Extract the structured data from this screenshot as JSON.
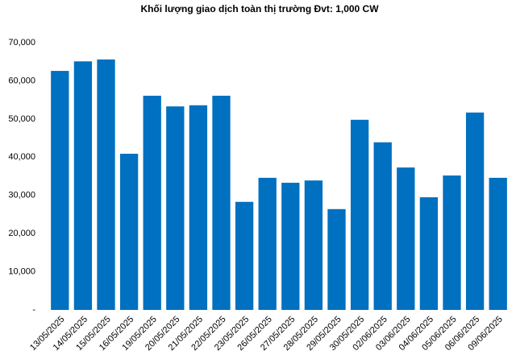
{
  "chart_data": {
    "type": "bar",
    "title": "Khối lượng giao dịch toàn thị trường Đvt: 1,000 CW",
    "categories": [
      "13/05/2025",
      "14/05/2025",
      "15/05/2025",
      "16/05/2025",
      "19/05/2025",
      "20/05/2025",
      "21/05/2025",
      "22/05/2025",
      "23/05/2025",
      "26/05/2025",
      "27/05/2025",
      "28/05/2025",
      "29/05/2025",
      "30/05/2025",
      "02/06/2025",
      "03/06/2025",
      "04/06/2025",
      "05/06/2025",
      "06/06/2025",
      "09/06/2025"
    ],
    "values": [
      62600,
      65100,
      65600,
      40900,
      56100,
      53300,
      53600,
      56100,
      28300,
      34600,
      33300,
      33900,
      26400,
      49800,
      43900,
      37300,
      29500,
      35200,
      51700,
      34600
    ],
    "color": "#0070c0",
    "ylim": [
      0,
      70000
    ],
    "yticks": [
      {
        "value": 0,
        "label": "-"
      },
      {
        "value": 10000,
        "label": "10,000"
      },
      {
        "value": 20000,
        "label": "20,000"
      },
      {
        "value": 30000,
        "label": "30,000"
      },
      {
        "value": 40000,
        "label": "40,000"
      },
      {
        "value": 50000,
        "label": "50,000"
      },
      {
        "value": 60000,
        "label": "60,000"
      },
      {
        "value": 70000,
        "label": "70,000"
      }
    ],
    "grid": false
  }
}
